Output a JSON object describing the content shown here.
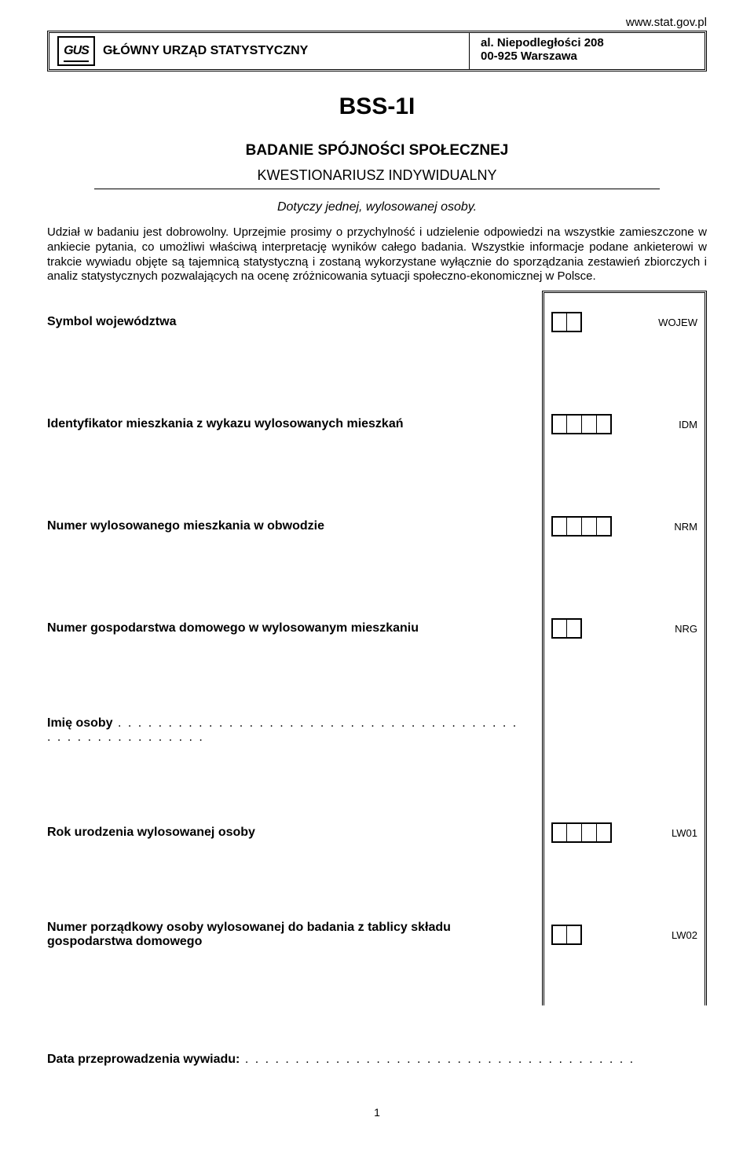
{
  "header": {
    "url": "www.stat.gov.pl",
    "logo_text": "GUS",
    "org_name": "GŁÓWNY URZĄD STATYSTYCZNY",
    "address_line1": "al. Niepodległości 208",
    "address_line2": "00-925 Warszawa"
  },
  "document": {
    "code": "BSS-1I",
    "title": "BADANIE SPÓJNOŚCI SPOŁECZNEJ",
    "subtitle": "KWESTIONARIUSZ INDYWIDUALNY",
    "note": "Dotyczy jednej, wylosowanej osoby.",
    "intro": "Udział w badaniu jest dobrowolny. Uprzejmie prosimy o przychylność i udzielenie odpowiedzi na wszystkie zamieszczone w ankiecie pytania, co umożliwi właściwą interpretację wyników całego badania. Wszystkie informacje podane ankieterowi w trakcie wywiadu objęte są tajemnicą statystyczną i zostaną wykorzystane wyłącznie do sporządzania zestawień zbiorczych i analiz statystycznych pozwalających na ocenę zróżnicowania sytuacji społeczno-ekonomicznej w Polsce."
  },
  "fields": {
    "wojew": {
      "label": "Symbol województwa",
      "code": "WOJEW",
      "cells": 2
    },
    "idm": {
      "label": "Identyfikator mieszkania z wykazu wylosowanych mieszkań",
      "code": "IDM",
      "cells": 4
    },
    "nrm": {
      "label": "Numer wylosowanego mieszkania w obwodzie",
      "code": "NRM",
      "cells": 4
    },
    "nrg": {
      "label": "Numer gospodarstwa domowego w wylosowanym mieszkaniu",
      "code": "NRG",
      "cells": 2
    },
    "imie": {
      "label": "Imię osoby",
      "dots": " . . . . . . . . . . . . . . . . . . . . . . . . . . . . . . . . . . . . . . . . . . . . . . . . . . . . . . . ."
    },
    "lw01": {
      "label": "Rok urodzenia wylosowanej osoby",
      "code": "LW01",
      "cells": 4
    },
    "lw02": {
      "label": "Numer porządkowy osoby wylosowanej do badania z tablicy składu gospodarstwa domowego",
      "code": "LW02",
      "cells": 2
    }
  },
  "footer": {
    "date_label": "Data przeprowadzenia wywiadu:",
    "date_dots": "  . . . . . . . . . . . . . . . . . . . . . . . . . . . . . . . . . . . . . . .",
    "page": "1"
  }
}
